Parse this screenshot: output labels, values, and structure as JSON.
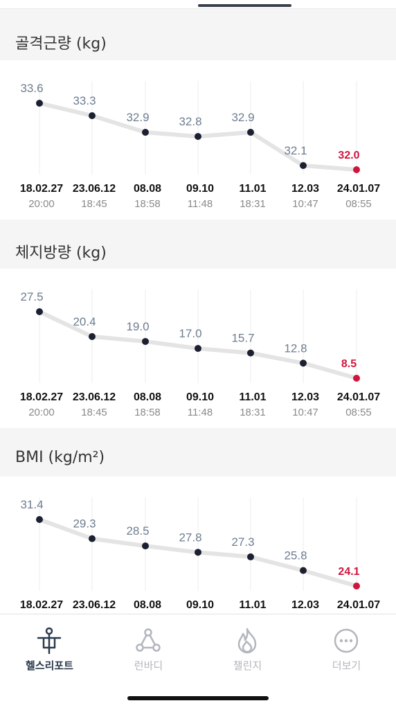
{
  "charts": [
    {
      "title": "골격근량 (kg)",
      "dates": [
        "18.02.27",
        "23.06.12",
        "08.08",
        "09.10",
        "11.01",
        "12.03",
        "24.01.07"
      ],
      "times": [
        "20:00",
        "18:45",
        "18:58",
        "11:48",
        "18:31",
        "10:47",
        "08:55"
      ],
      "values": [
        33.6,
        33.3,
        32.9,
        32.8,
        32.9,
        32.1,
        32.0
      ],
      "labels": [
        "33.6",
        "33.3",
        "32.9",
        "32.8",
        "32.9",
        "32.1",
        "32.0"
      ]
    },
    {
      "title": "체지방량 (kg)",
      "dates": [
        "18.02.27",
        "23.06.12",
        "08.08",
        "09.10",
        "11.01",
        "12.03",
        "24.01.07"
      ],
      "times": [
        "20:00",
        "18:45",
        "18:58",
        "11:48",
        "18:31",
        "10:47",
        "08:55"
      ],
      "values": [
        27.5,
        20.4,
        19.0,
        17.0,
        15.7,
        12.8,
        8.5
      ],
      "labels": [
        "27.5",
        "20.4",
        "19.0",
        "17.0",
        "15.7",
        "12.8",
        "8.5"
      ]
    },
    {
      "title": "BMI (kg/m²)",
      "dates": [
        "18.02.27",
        "23.06.12",
        "08.08",
        "09.10",
        "11.01",
        "12.03",
        "24.01.07"
      ],
      "times": [],
      "values": [
        31.4,
        29.3,
        28.5,
        27.8,
        27.3,
        25.8,
        24.1
      ],
      "labels": [
        "31.4",
        "29.3",
        "28.5",
        "27.8",
        "27.3",
        "25.8",
        "24.1"
      ]
    }
  ],
  "colors": {
    "point": "#1c2030",
    "latest_point": "#d0153c",
    "line": "#e4e4e4",
    "grid": "#ececec",
    "value_label": "#6e7d90"
  },
  "tabs": [
    {
      "label": "헬스리포트",
      "icon": "health-report-icon",
      "active": true
    },
    {
      "label": "런바디",
      "icon": "runbody-icon",
      "active": false
    },
    {
      "label": "챌린지",
      "icon": "challenge-flame-icon",
      "active": false
    },
    {
      "label": "더보기",
      "icon": "more-icon",
      "active": false
    }
  ]
}
